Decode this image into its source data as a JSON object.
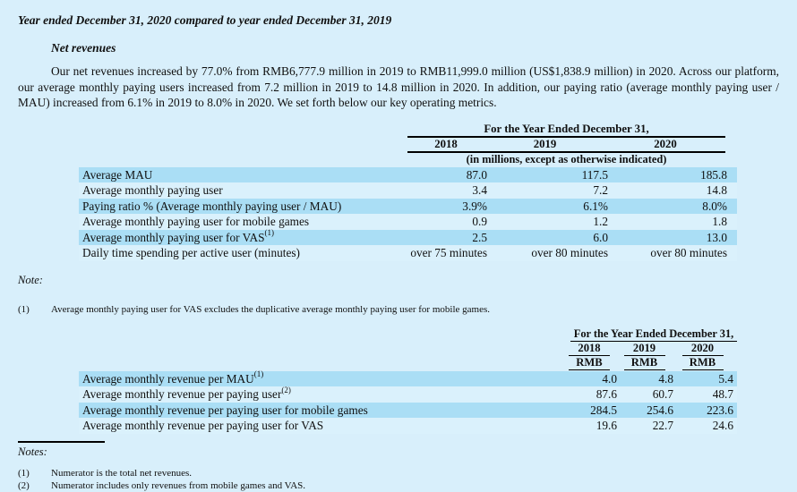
{
  "document": {
    "heading": "Year ended December 31, 2020 compared to year ended December 31, 2019",
    "subheading": "Net revenues",
    "paragraph": "Our net revenues increased by 77.0% from RMB6,777.9 million in 2019 to RMB11,999.0 million (US$1,838.9 million) in 2020. Across our platform, our average monthly paying users increased from 7.2 million in 2019 to 14.8 million in 2020. In addition, our paying ratio (average monthly paying user / MAU) increased from 6.1% in 2019 to 8.0% in 2020. We set forth below our key operating metrics."
  },
  "metrics_table": {
    "span_header": "For the Year Ended December 31,",
    "years": [
      "2018",
      "2019",
      "2020"
    ],
    "units_note": "(in millions, except as otherwise indicated)",
    "rows": [
      {
        "label": "Average MAU",
        "sup": "",
        "v2018": "87.0",
        "v2019": "117.5",
        "v2020": "185.8"
      },
      {
        "label": "Average monthly paying user",
        "sup": "",
        "v2018": "3.4",
        "v2019": "7.2",
        "v2020": "14.8"
      },
      {
        "label": "Paying ratio % (Average monthly paying user / MAU)",
        "sup": "",
        "v2018": "3.9%",
        "v2019": "6.1%",
        "v2020": "8.0%"
      },
      {
        "label": "Average monthly paying user for mobile games",
        "sup": "",
        "v2018": "0.9",
        "v2019": "1.2",
        "v2020": "1.8"
      },
      {
        "label": "Average monthly paying user for VAS",
        "sup": "(1)",
        "v2018": "2.5",
        "v2019": "6.0",
        "v2020": "13.0"
      },
      {
        "label": "Daily time spending per active user (minutes)",
        "sup": "",
        "v2018": "over 75 minutes",
        "v2019": "over 80 minutes",
        "v2020": "over 80 minutes"
      }
    ]
  },
  "note": {
    "title": "Note:",
    "items": [
      {
        "num": "(1)",
        "text": "Average monthly paying user for VAS excludes the duplicative average monthly paying user for mobile games."
      }
    ]
  },
  "revenue_table": {
    "span_header": "For the Year Ended December 31,",
    "years": [
      "2018",
      "2019",
      "2020"
    ],
    "currencies": [
      "RMB",
      "RMB",
      "RMB"
    ],
    "rows": [
      {
        "label": "Average monthly revenue per MAU",
        "sup": "(1)",
        "v2018": "4.0",
        "v2019": "4.8",
        "v2020": "5.4"
      },
      {
        "label": "Average monthly revenue per paying user",
        "sup": "(2)",
        "v2018": "87.6",
        "v2019": "60.7",
        "v2020": "48.7"
      },
      {
        "label": "Average monthly revenue per paying user for mobile games",
        "sup": "",
        "v2018": "284.5",
        "v2019": "254.6",
        "v2020": "223.6"
      },
      {
        "label": "Average monthly revenue per paying user for VAS",
        "sup": "",
        "v2018": "19.6",
        "v2019": "22.7",
        "v2020": "24.6"
      }
    ]
  },
  "notes": {
    "title": "Notes:",
    "items": [
      {
        "num": "(1)",
        "text": "Numerator is the total net revenues."
      },
      {
        "num": "(2)",
        "text": "Numerator includes only revenues from mobile games and VAS."
      }
    ]
  },
  "colors": {
    "page_background": "#d8effb",
    "row_highlight": "#aadef5",
    "row_plain": "#daf1fc",
    "text": "#101010",
    "rule": "#000000"
  }
}
